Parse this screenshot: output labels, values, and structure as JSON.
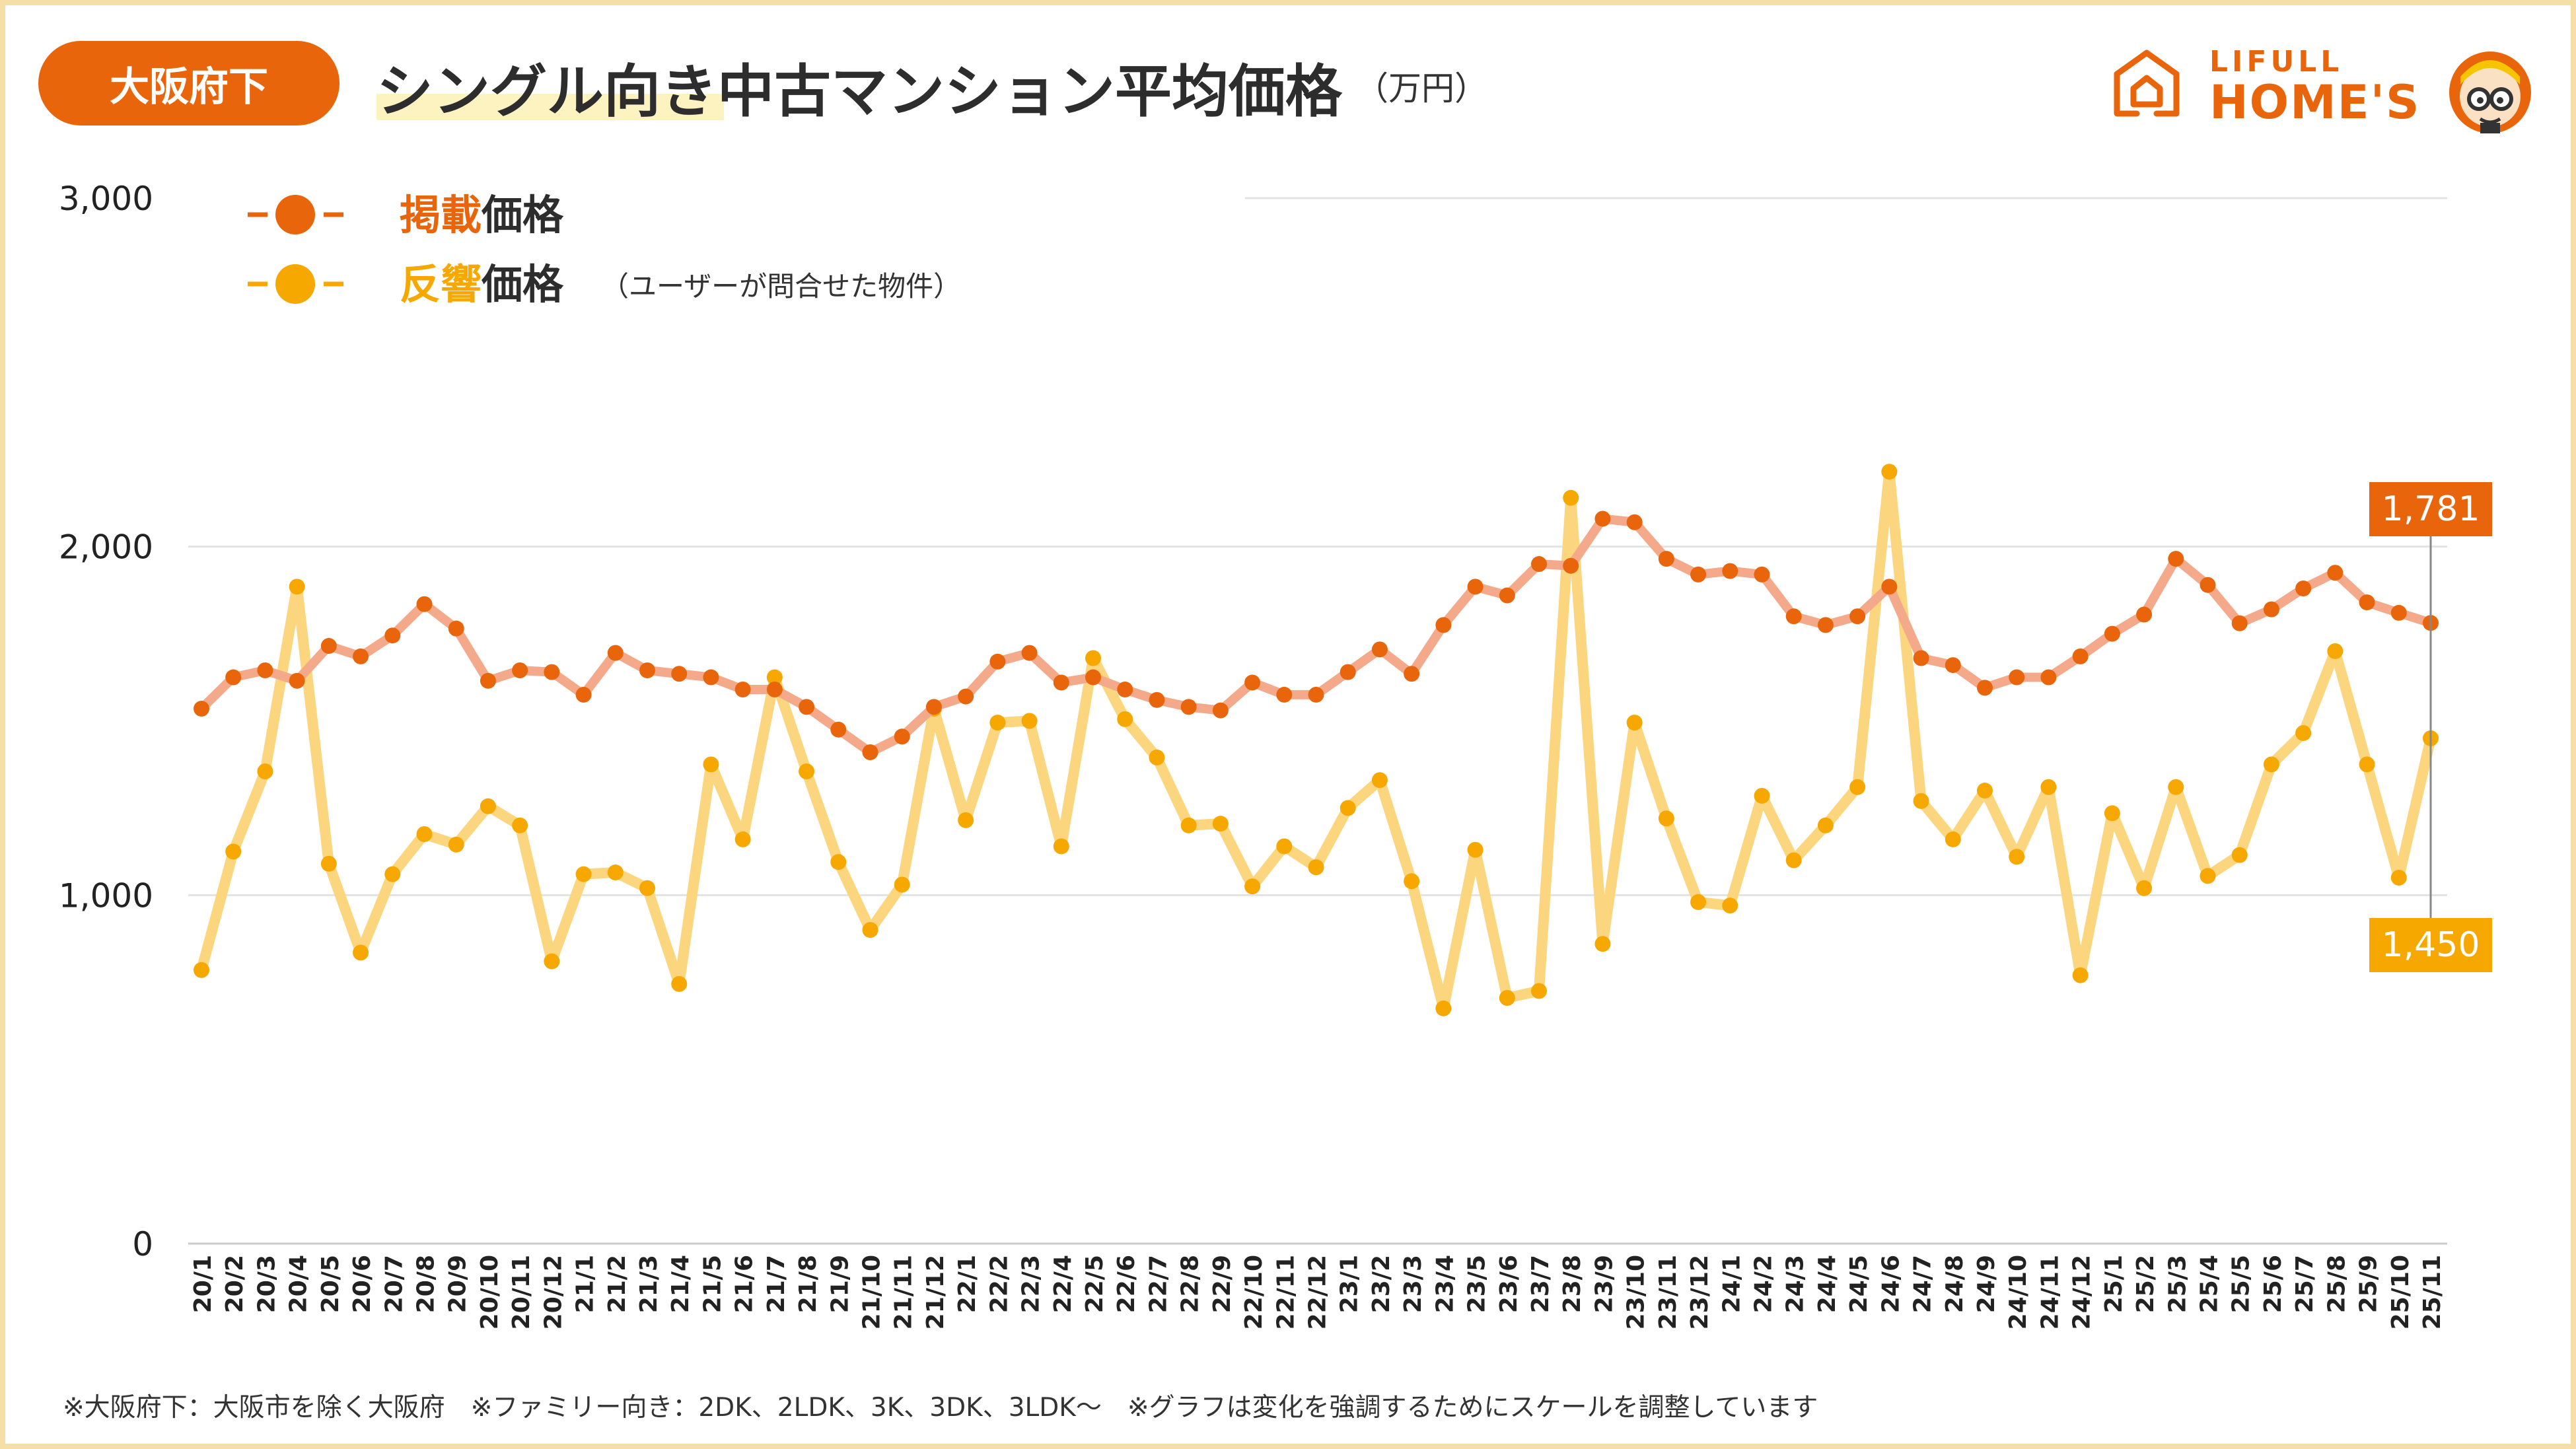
{
  "header": {
    "region_badge": "大阪府下",
    "title": "シングル向き中古マンション平均価格",
    "unit": "（万円）"
  },
  "logo": {
    "top_text": "LIFULL",
    "bottom_text": "HOME'S",
    "color": "#e9650b"
  },
  "legend": [
    {
      "highlight": "掲載",
      "rest": "価格",
      "sub": "",
      "color": "#e9650b"
    },
    {
      "highlight": "反響",
      "rest": "価格",
      "sub": "（ユーザーが問合せた物件）",
      "color": "#f6a800"
    }
  ],
  "footnote": "※大阪府下：大阪市を除く大阪府　※ファミリー向き：2DK、2LDK、3K、3DK、3LDK～　※グラフは変化を強調するためにスケールを調整しています",
  "chart_data": {
    "type": "line",
    "ylim": [
      0,
      3000
    ],
    "yticks": [
      0,
      1000,
      2000,
      3000
    ],
    "ytick_labels": [
      "0",
      "1,000",
      "2,000",
      "3,000"
    ],
    "grid": true,
    "legend_position": "top-left",
    "categories": [
      "20/1",
      "20/2",
      "20/3",
      "20/4",
      "20/5",
      "20/6",
      "20/7",
      "20/8",
      "20/9",
      "20/10",
      "20/11",
      "20/12",
      "21/1",
      "21/2",
      "21/3",
      "21/4",
      "21/5",
      "21/6",
      "21/7",
      "21/8",
      "21/9",
      "21/10",
      "21/11",
      "21/12",
      "22/1",
      "22/2",
      "22/3",
      "22/4",
      "22/5",
      "22/6",
      "22/7",
      "22/8",
      "22/9",
      "22/10",
      "22/11",
      "22/12",
      "23/1",
      "23/2",
      "23/3",
      "23/4",
      "23/5",
      "23/6",
      "23/7",
      "23/8",
      "23/9",
      "23/10",
      "23/11",
      "23/12",
      "24/1",
      "24/2",
      "24/3",
      "24/4",
      "24/5",
      "24/6",
      "24/7",
      "24/8",
      "24/9",
      "24/10",
      "24/11",
      "24/12",
      "25/1",
      "25/2",
      "25/3",
      "25/4",
      "25/5",
      "25/6",
      "25/7",
      "25/8",
      "25/9",
      "25/10",
      "25/11"
    ],
    "series": [
      {
        "name": "掲載価格",
        "color": "#e9650b",
        "line_color": "#f3a98a",
        "values": [
          1535,
          1625,
          1645,
          1615,
          1715,
          1685,
          1745,
          1835,
          1765,
          1615,
          1645,
          1640,
          1575,
          1695,
          1645,
          1635,
          1625,
          1590,
          1590,
          1540,
          1475,
          1410,
          1455,
          1540,
          1570,
          1670,
          1695,
          1610,
          1625,
          1590,
          1560,
          1540,
          1530,
          1610,
          1575,
          1575,
          1640,
          1705,
          1635,
          1775,
          1885,
          1860,
          1950,
          1945,
          2080,
          2070,
          1965,
          1920,
          1930,
          1920,
          1800,
          1775,
          1800,
          1885,
          1680,
          1660,
          1595,
          1625,
          1625,
          1685,
          1750,
          1805,
          1965,
          1890,
          1780,
          1820,
          1880,
          1925,
          1840,
          1810,
          1781
        ],
        "end_label": "1,781"
      },
      {
        "name": "反響価格",
        "color": "#f6a800",
        "line_color": "#fbd67e",
        "values": [
          785,
          1125,
          1355,
          1885,
          1090,
          835,
          1060,
          1175,
          1145,
          1255,
          1200,
          810,
          1060,
          1065,
          1020,
          745,
          1375,
          1160,
          1625,
          1355,
          1095,
          900,
          1030,
          1535,
          1215,
          1495,
          1500,
          1140,
          1680,
          1505,
          1395,
          1200,
          1205,
          1025,
          1140,
          1080,
          1250,
          1330,
          1040,
          675,
          1130,
          705,
          725,
          2140,
          860,
          1495,
          1220,
          980,
          970,
          1285,
          1100,
          1200,
          1310,
          2215,
          1270,
          1160,
          1300,
          1110,
          1310,
          770,
          1235,
          1020,
          1310,
          1055,
          1115,
          1375,
          1465,
          1700,
          1375,
          1050,
          1450
        ],
        "end_label": "1,450"
      }
    ]
  }
}
